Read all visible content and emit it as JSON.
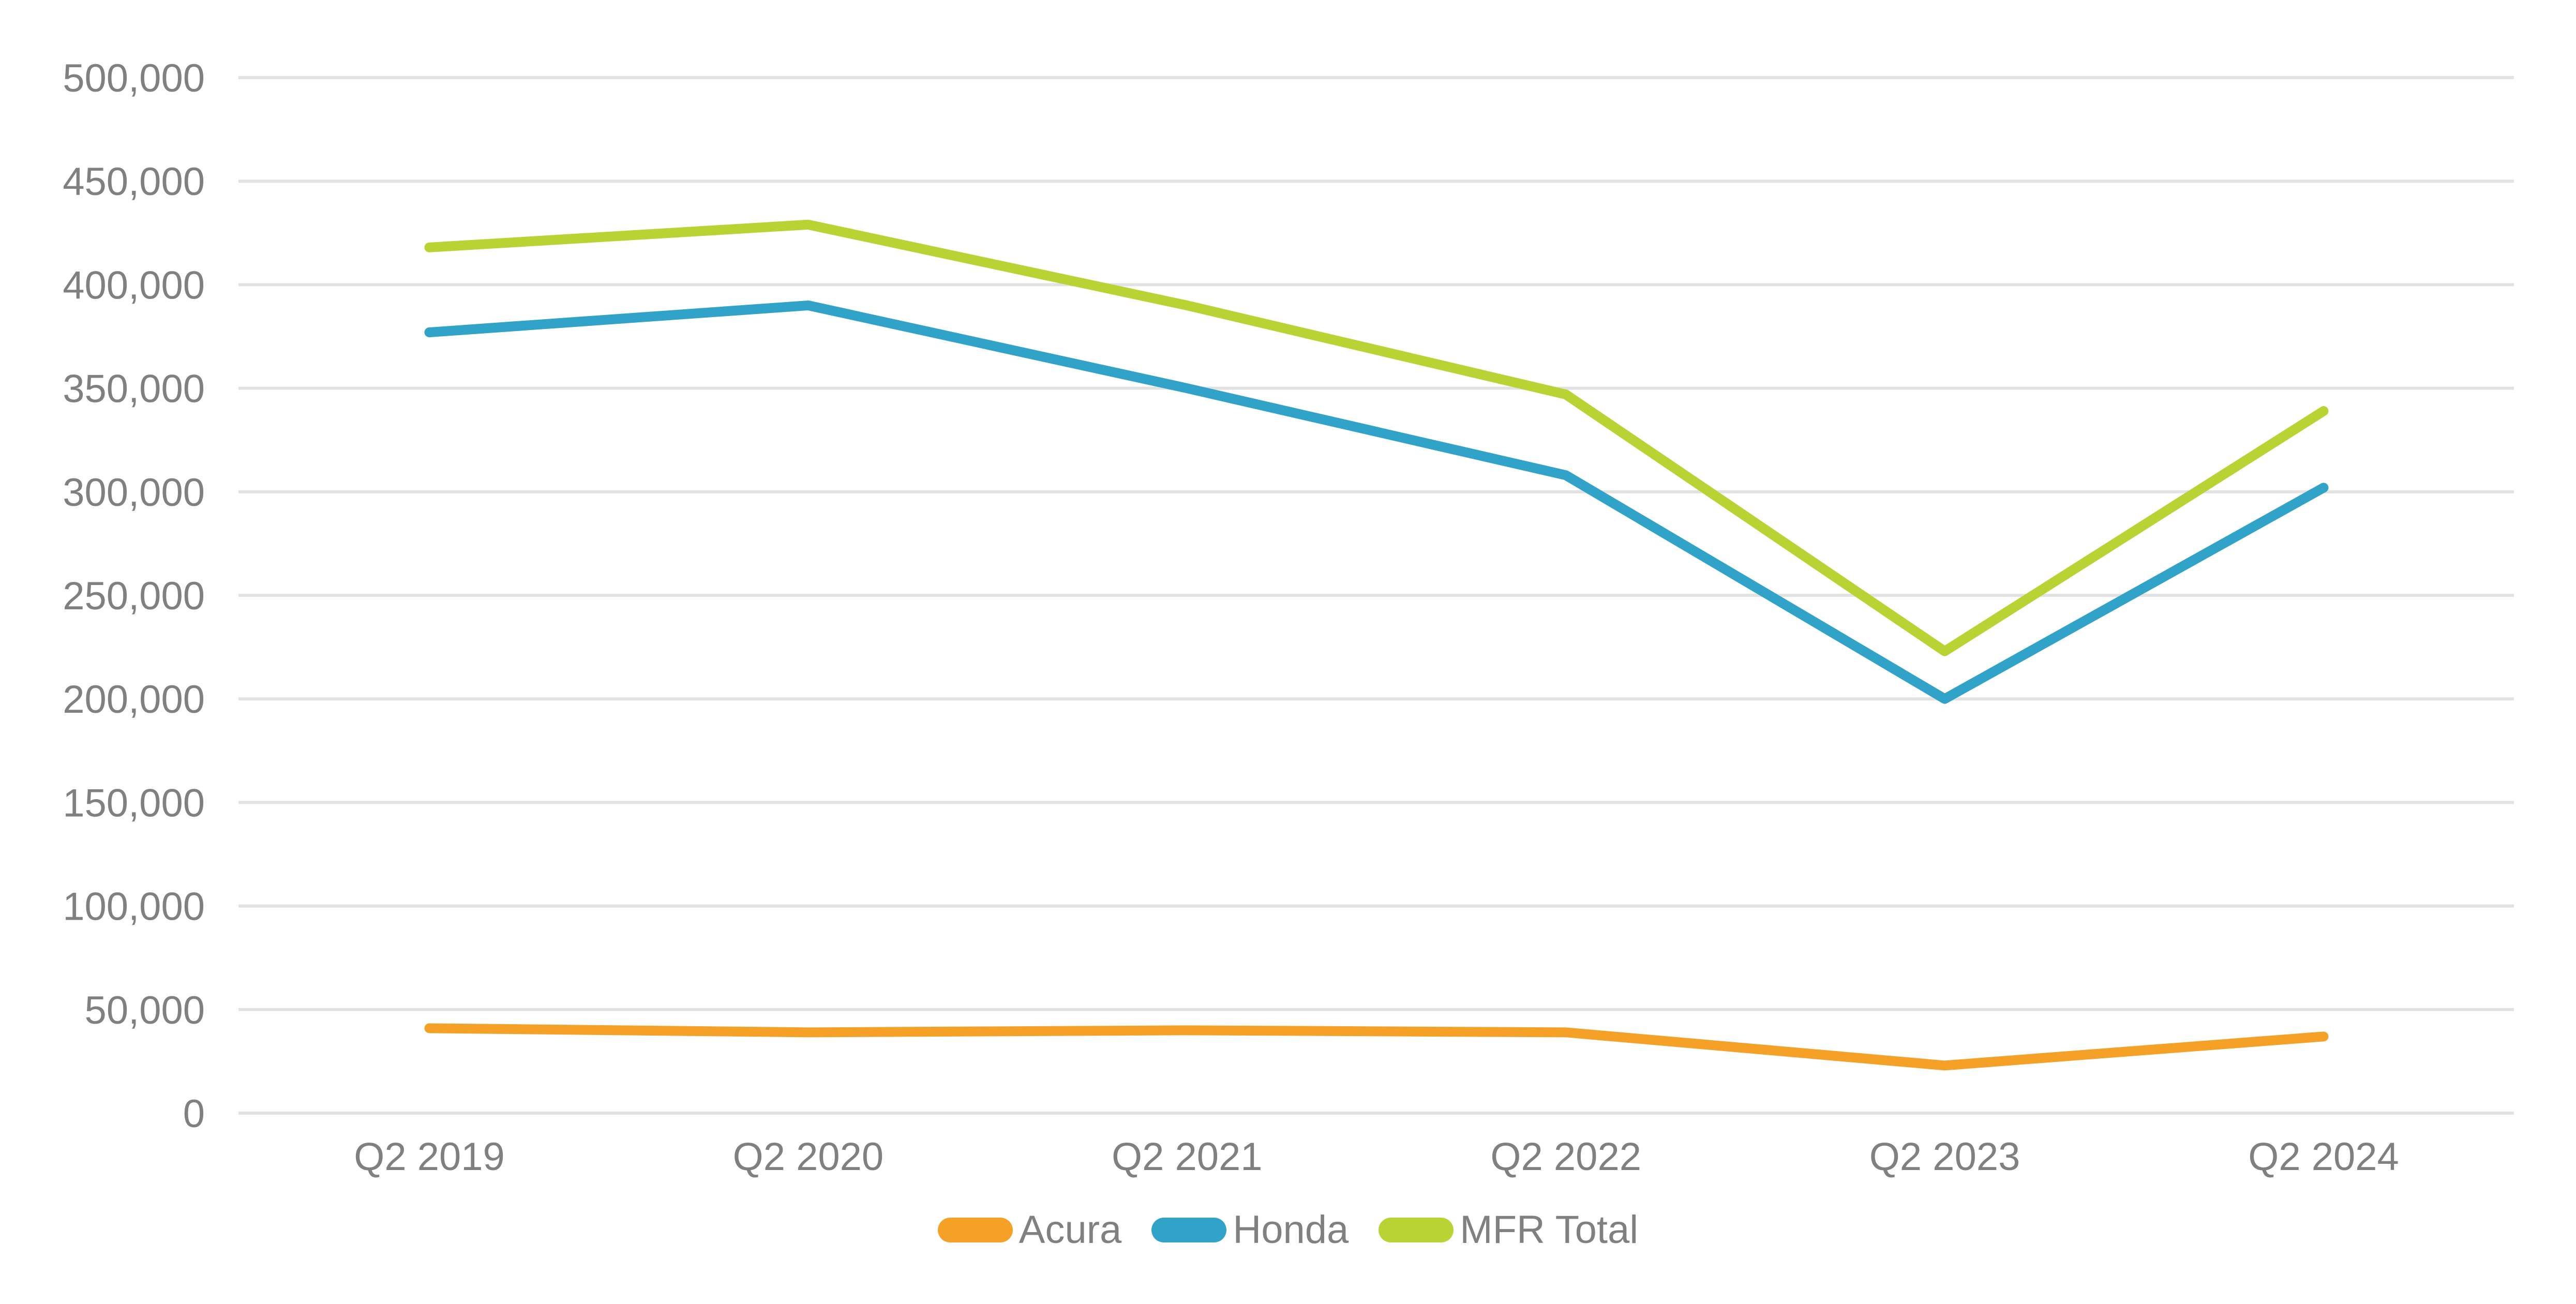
{
  "chart_data": {
    "type": "line",
    "title": "",
    "xlabel": "",
    "ylabel": "",
    "categories": [
      "Q2 2019",
      "Q2 2020",
      "Q2 2021",
      "Q2 2022",
      "Q2 2023",
      "Q2 2024"
    ],
    "series": [
      {
        "name": "Acura",
        "color": "#F5A026",
        "values": [
          41000,
          39000,
          40000,
          39000,
          23000,
          37000
        ]
      },
      {
        "name": "Honda",
        "color": "#31A3C8",
        "values": [
          377000,
          390000,
          350000,
          308000,
          200000,
          302000
        ]
      },
      {
        "name": "MFR Total",
        "color": "#B9D334",
        "values": [
          418000,
          429000,
          390000,
          347000,
          223000,
          339000
        ]
      }
    ],
    "ylim": [
      0,
      500000
    ],
    "ytick_interval": 50000,
    "ytick_labels": [
      "0",
      "50,000",
      "100,000",
      "150,000",
      "200,000",
      "250,000",
      "300,000",
      "350,000",
      "400,000",
      "450,000",
      "500,000"
    ],
    "grid": "horizontal",
    "gridline_color": "#E2E2E2",
    "axis_text_color": "#808080",
    "background_color": "#FFFFFF",
    "legend_position": "bottom"
  }
}
